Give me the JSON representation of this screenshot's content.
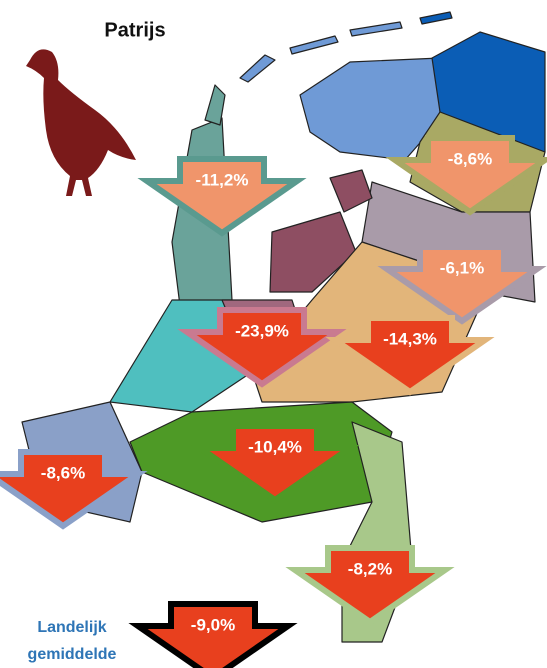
{
  "title": "Patrijs",
  "regions": [
    {
      "label": "-11,2%"
    },
    {
      "label": "-8,6%"
    },
    {
      "label": "-6,1%"
    },
    {
      "label": "-23,9%"
    },
    {
      "label": "-14,3%"
    },
    {
      "label": "-10,4%"
    },
    {
      "label": "-8,6%"
    },
    {
      "label": "-8,2%"
    }
  ],
  "national": {
    "caption_line1": "Landelijk",
    "caption_line2": "gemiddelde",
    "label": "-9,0%"
  }
}
